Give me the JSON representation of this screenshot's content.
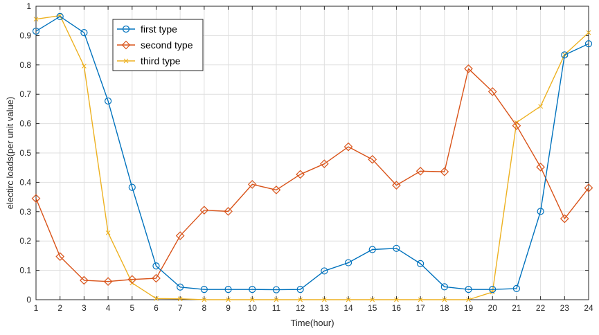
{
  "chart_data": {
    "type": "line",
    "title": "",
    "xlabel": "Time(hour)",
    "ylabel": "electirc loads(per unit value)",
    "xlim": [
      1,
      24
    ],
    "ylim": [
      0,
      1
    ],
    "x": [
      1,
      2,
      3,
      4,
      5,
      6,
      7,
      8,
      9,
      10,
      11,
      12,
      13,
      14,
      15,
      16,
      17,
      18,
      19,
      20,
      21,
      22,
      23,
      24
    ],
    "xticks": [
      "1",
      "2",
      "3",
      "4",
      "5",
      "6",
      "7",
      "8",
      "9",
      "10",
      "11",
      "12",
      "13",
      "14",
      "15",
      "16",
      "17",
      "18",
      "19",
      "20",
      "21",
      "22",
      "23",
      "24"
    ],
    "yticks": [
      "0",
      "0.1",
      "0.2",
      "0.3",
      "0.4",
      "0.5",
      "0.6",
      "0.7",
      "0.8",
      "0.9",
      "1"
    ],
    "grid": true,
    "legend_position": "top-left",
    "series": [
      {
        "name": "first type",
        "color": "#0072BD",
        "marker": "circle",
        "values": [
          0.915,
          0.965,
          0.91,
          0.677,
          0.383,
          0.115,
          0.043,
          0.035,
          0.035,
          0.035,
          0.034,
          0.035,
          0.098,
          0.126,
          0.171,
          0.175,
          0.123,
          0.044,
          0.035,
          0.035,
          0.038,
          0.301,
          0.834,
          0.872
        ]
      },
      {
        "name": "second type",
        "color": "#D95319",
        "marker": "diamond",
        "values": [
          0.345,
          0.147,
          0.066,
          0.062,
          0.069,
          0.073,
          0.218,
          0.305,
          0.301,
          0.393,
          0.374,
          0.427,
          0.463,
          0.521,
          0.478,
          0.39,
          0.438,
          0.436,
          0.787,
          0.709,
          0.593,
          0.452,
          0.276,
          0.381
        ]
      },
      {
        "name": "third type",
        "color": "#EDB120",
        "marker": "x",
        "values": [
          0.956,
          0.968,
          0.796,
          0.228,
          0.057,
          0.004,
          0.003,
          0.0,
          0.0,
          0.0,
          0.0,
          0.0,
          0.0,
          0.0,
          0.0,
          0.0,
          0.0,
          0.0,
          0.0,
          0.026,
          0.604,
          0.659,
          0.835,
          0.91
        ]
      }
    ]
  }
}
